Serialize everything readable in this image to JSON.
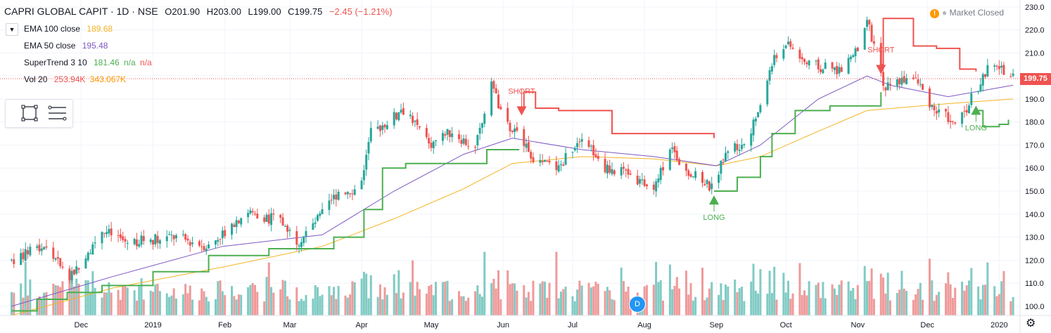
{
  "header": {
    "symbol": "CAPRI GLOBAL CAPIT · 1D · NSE",
    "open_label": "O",
    "open": "201.90",
    "high_label": "H",
    "high": "203.00",
    "low_label": "L",
    "low": "199.00",
    "close_label": "C",
    "close": "199.75",
    "change": "−2.45 (−1.21%)"
  },
  "indicators": [
    {
      "name": "EMA 100 close",
      "values": [
        "189.68"
      ],
      "color": "#f5b324"
    },
    {
      "name": "EMA 50 close",
      "values": [
        "195.48"
      ],
      "color": "#7e57c2"
    },
    {
      "name": "SuperTrend 3 10",
      "values": [
        "181.46",
        "n/a",
        "n/a"
      ],
      "colors": [
        "#4caf50",
        "#4caf50",
        "#ef5350"
      ]
    },
    {
      "name": "Vol 20",
      "values": [
        "253.94K",
        "343.067K"
      ],
      "colors": [
        "#ef5350",
        "#ff9800"
      ]
    }
  ],
  "market_status": "Market Closed",
  "market_icon": "warning-icon",
  "last_price_tag": "199.75",
  "dividend_badge": "D",
  "colors": {
    "up": "#26a69a",
    "down": "#ef5350",
    "ema100": "#f5b324",
    "ema50": "#7e57c2",
    "supertrend_up": "#4caf50",
    "supertrend_down": "#ef5350",
    "vol_up": "#80cbc4",
    "vol_down": "#ef9a9a"
  },
  "chart_data": {
    "type": "candlestick",
    "x_ticks": [
      {
        "label": "Dec",
        "date": "2018-12-01"
      },
      {
        "label": "2019",
        "date": "2019-01-01"
      },
      {
        "label": "Feb",
        "date": "2019-02-01"
      },
      {
        "label": "Mar",
        "date": "2019-03-01"
      },
      {
        "label": "Apr",
        "date": "2019-04-01"
      },
      {
        "label": "May",
        "date": "2019-05-01"
      },
      {
        "label": "Jun",
        "date": "2019-06-01"
      },
      {
        "label": "Jul",
        "date": "2019-07-01"
      },
      {
        "label": "Aug",
        "date": "2019-08-01"
      },
      {
        "label": "Sep",
        "date": "2019-09-01"
      },
      {
        "label": "Oct",
        "date": "2019-10-01"
      },
      {
        "label": "Nov",
        "date": "2019-11-01"
      },
      {
        "label": "Dec",
        "date": "2019-12-01"
      },
      {
        "label": "2020",
        "date": "2020-01-01"
      }
    ],
    "y_ticks": [
      100,
      110,
      120,
      130,
      140,
      150,
      160,
      170,
      180,
      190,
      200,
      210,
      220,
      230
    ],
    "ylim": [
      96,
      233
    ],
    "price_path": [
      [
        "2018-11-01",
        120
      ],
      [
        "2018-11-15",
        126
      ],
      [
        "2018-11-26",
        112
      ],
      [
        "2018-12-10",
        133
      ],
      [
        "2018-12-20",
        128
      ],
      [
        "2019-01-10",
        130
      ],
      [
        "2019-01-25",
        126
      ],
      [
        "2019-02-10",
        141
      ],
      [
        "2019-02-25",
        137
      ],
      [
        "2019-03-05",
        128
      ],
      [
        "2019-03-15",
        140
      ],
      [
        "2019-03-22",
        150
      ],
      [
        "2019-03-31",
        151
      ],
      [
        "2019-04-05",
        175
      ],
      [
        "2019-04-20",
        186
      ],
      [
        "2019-04-30",
        170
      ],
      [
        "2019-05-10",
        176
      ],
      [
        "2019-05-20",
        168
      ],
      [
        "2019-05-27",
        198
      ],
      [
        "2019-06-01",
        180
      ],
      [
        "2019-06-10",
        172
      ],
      [
        "2019-06-15",
        163
      ],
      [
        "2019-06-25",
        160
      ],
      [
        "2019-07-05",
        175
      ],
      [
        "2019-07-15",
        160
      ],
      [
        "2019-07-25",
        158
      ],
      [
        "2019-08-05",
        150
      ],
      [
        "2019-08-12",
        170
      ],
      [
        "2019-08-18",
        160
      ],
      [
        "2019-08-30",
        151
      ],
      [
        "2019-09-05",
        168
      ],
      [
        "2019-09-15",
        172
      ],
      [
        "2019-09-25",
        205
      ],
      [
        "2019-10-01",
        215
      ],
      [
        "2019-10-10",
        205
      ],
      [
        "2019-10-25",
        202
      ],
      [
        "2019-11-01",
        212
      ],
      [
        "2019-11-05",
        225
      ],
      [
        "2019-11-12",
        195
      ],
      [
        "2019-11-25",
        200
      ],
      [
        "2019-12-05",
        184
      ],
      [
        "2019-12-15",
        180
      ],
      [
        "2019-12-20",
        190
      ],
      [
        "2019-12-28",
        205
      ],
      [
        "2020-01-07",
        200
      ]
    ],
    "ema50": [
      [
        "2018-11-01",
        100
      ],
      [
        "2018-12-15",
        113
      ],
      [
        "2019-01-31",
        126
      ],
      [
        "2019-03-15",
        131
      ],
      [
        "2019-04-15",
        150
      ],
      [
        "2019-05-15",
        166
      ],
      [
        "2019-06-05",
        173
      ],
      [
        "2019-07-05",
        168
      ],
      [
        "2019-08-05",
        165
      ],
      [
        "2019-09-01",
        161
      ],
      [
        "2019-09-20",
        170
      ],
      [
        "2019-10-15",
        190
      ],
      [
        "2019-11-05",
        200
      ],
      [
        "2019-11-15",
        196
      ],
      [
        "2019-12-10",
        191
      ],
      [
        "2020-01-07",
        196
      ]
    ],
    "ema100": [
      [
        "2018-11-01",
        96
      ],
      [
        "2018-12-15",
        108
      ],
      [
        "2019-01-31",
        117
      ],
      [
        "2019-03-15",
        126
      ],
      [
        "2019-04-15",
        138
      ],
      [
        "2019-05-15",
        151
      ],
      [
        "2019-06-05",
        162
      ],
      [
        "2019-07-05",
        165
      ],
      [
        "2019-08-05",
        164
      ],
      [
        "2019-09-01",
        161
      ],
      [
        "2019-09-20",
        165
      ],
      [
        "2019-10-15",
        176
      ],
      [
        "2019-11-05",
        185
      ],
      [
        "2019-12-10",
        188
      ],
      [
        "2020-01-07",
        190
      ]
    ],
    "supertrend_up_1": [
      [
        "2018-11-01",
        98
      ],
      [
        "2018-11-12",
        103
      ],
      [
        "2018-11-25",
        106
      ],
      [
        "2018-12-10",
        109
      ],
      [
        "2019-01-01",
        115
      ],
      [
        "2019-01-25",
        122
      ],
      [
        "2019-02-20",
        125
      ],
      [
        "2019-03-20",
        130
      ],
      [
        "2019-04-02",
        142
      ],
      [
        "2019-04-10",
        160
      ],
      [
        "2019-04-20",
        162
      ],
      [
        "2019-05-05",
        162
      ],
      [
        "2019-05-25",
        168
      ],
      [
        "2019-06-08",
        168
      ]
    ],
    "supertrend_down_1": [
      [
        "2019-06-08",
        186
      ],
      [
        "2019-06-10",
        193
      ],
      [
        "2019-06-15",
        186
      ],
      [
        "2019-06-25",
        185
      ],
      [
        "2019-07-10",
        185
      ],
      [
        "2019-07-18",
        175
      ],
      [
        "2019-08-05",
        175
      ],
      [
        "2019-08-31",
        173
      ]
    ],
    "supertrend_up_2": [
      [
        "2019-08-31",
        150
      ],
      [
        "2019-09-10",
        156
      ],
      [
        "2019-09-20",
        165
      ],
      [
        "2019-09-25",
        175
      ],
      [
        "2019-10-05",
        185
      ],
      [
        "2019-10-20",
        187
      ],
      [
        "2019-11-11",
        193
      ]
    ],
    "supertrend_down_2": [
      [
        "2019-11-11",
        205
      ],
      [
        "2019-11-12",
        225
      ],
      [
        "2019-11-20",
        225
      ],
      [
        "2019-11-25",
        213
      ],
      [
        "2019-12-05",
        212
      ],
      [
        "2019-12-15",
        203
      ],
      [
        "2019-12-22",
        202
      ]
    ],
    "supertrend_up_3": [
      [
        "2019-12-22",
        185
      ],
      [
        "2019-12-25",
        178
      ],
      [
        "2020-01-01",
        179
      ],
      [
        "2020-01-05",
        181
      ]
    ],
    "signals": [
      {
        "type": "short",
        "label": "SHORT",
        "date": "2019-06-09",
        "price": 185
      },
      {
        "type": "long",
        "label": "LONG",
        "date": "2019-08-31",
        "price": 146
      },
      {
        "type": "short",
        "label": "SHORT",
        "date": "2019-11-11",
        "price": 203
      },
      {
        "type": "long",
        "label": "LONG",
        "date": "2019-12-22",
        "price": 185
      }
    ],
    "volume_range": [
      "2018-11-01",
      "2020-01-07"
    ],
    "last_price": 199.75
  }
}
